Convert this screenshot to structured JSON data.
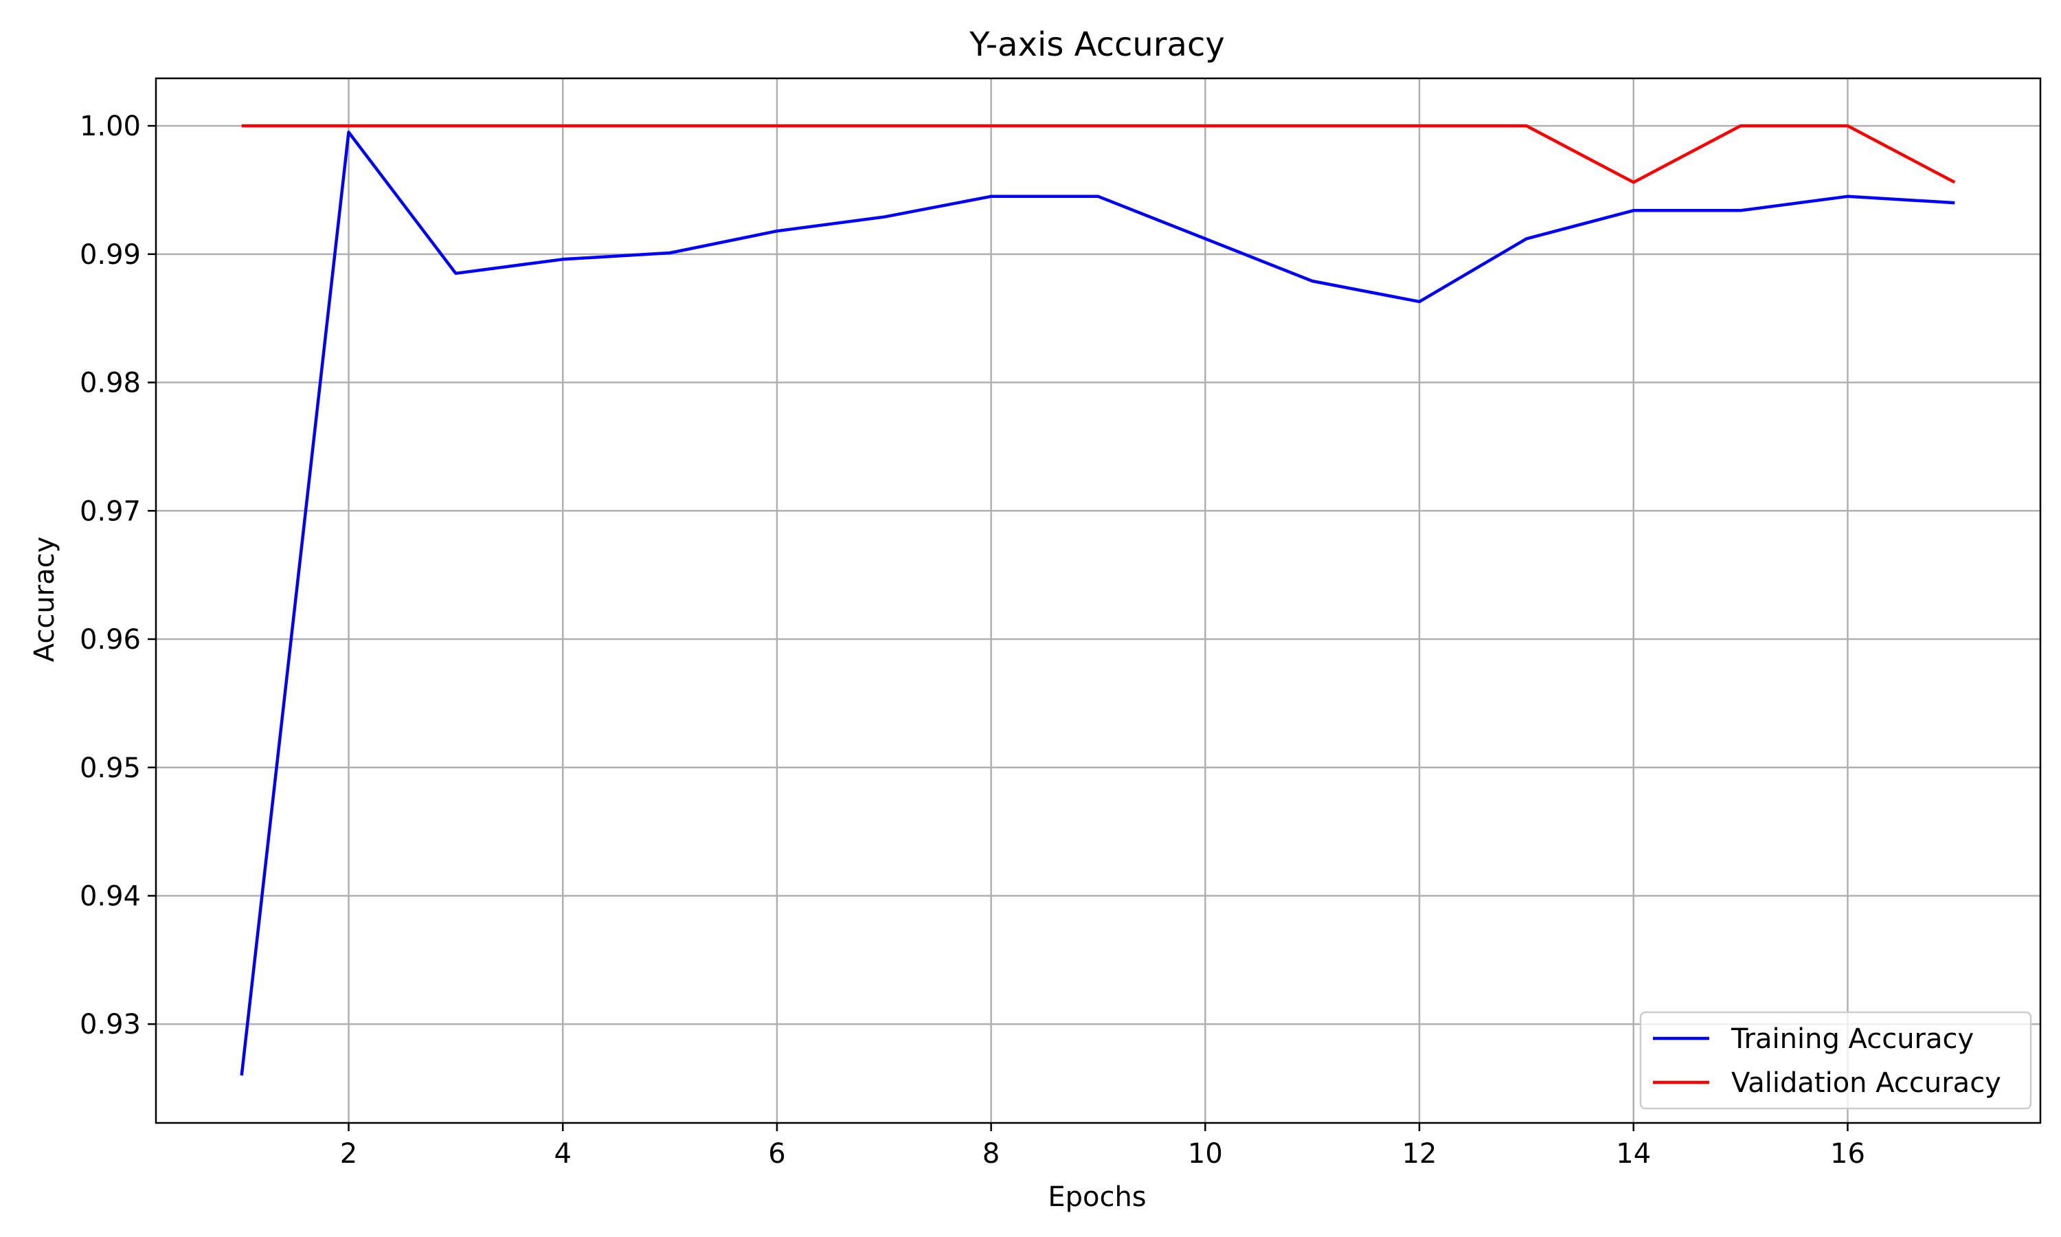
{
  "chart_data": {
    "type": "line",
    "title": "Y-axis Accuracy",
    "xlabel": "Epochs",
    "ylabel": "Accuracy",
    "xlim": [
      0.2,
      17.8
    ],
    "ylim": [
      0.9223,
      1.0037
    ],
    "xticks": [
      2,
      4,
      6,
      8,
      10,
      12,
      14,
      16
    ],
    "xtick_labels": [
      "2",
      "4",
      "6",
      "8",
      "10",
      "12",
      "14",
      "16"
    ],
    "yticks": [
      0.93,
      0.94,
      0.95,
      0.96,
      0.97,
      0.98,
      0.99,
      1.0
    ],
    "ytick_labels": [
      "0.93",
      "0.94",
      "0.95",
      "0.96",
      "0.97",
      "0.98",
      "0.99",
      "1.00"
    ],
    "grid": true,
    "legend_position": "lower-right",
    "x": [
      1,
      2,
      3,
      4,
      5,
      6,
      7,
      8,
      9,
      10,
      11,
      12,
      13,
      14,
      15,
      16,
      17
    ],
    "series": [
      {
        "name": "Training Accuracy",
        "color": "#0000ff",
        "values": [
          0.926,
          0.9995,
          0.9885,
          0.9896,
          0.9901,
          0.9918,
          0.9929,
          0.9945,
          0.9945,
          0.9912,
          0.9879,
          0.9863,
          0.9912,
          0.9934,
          0.9934,
          0.9945,
          0.994
        ]
      },
      {
        "name": "Validation Accuracy",
        "color": "#ff0000",
        "values": [
          1.0,
          1.0,
          1.0,
          1.0,
          1.0,
          1.0,
          1.0,
          1.0,
          1.0,
          1.0,
          1.0,
          1.0,
          1.0,
          0.9956,
          1.0,
          1.0,
          0.9956
        ]
      }
    ]
  }
}
